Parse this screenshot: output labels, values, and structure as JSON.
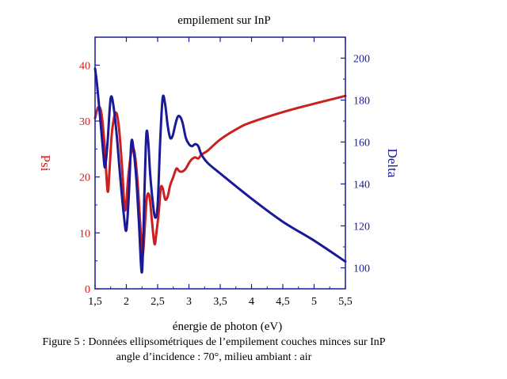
{
  "chart_data": {
    "type": "line",
    "title": "empilement sur InP",
    "xlabel": "énergie de photon (eV)",
    "ylabel_left": "Psi",
    "ylabel_right": "Delta",
    "xlim": [
      1.5,
      5.5
    ],
    "ylim_left": [
      0,
      45
    ],
    "ylim_right": [
      90,
      210
    ],
    "x_ticks": [
      1.5,
      2,
      2.5,
      3,
      3.5,
      4,
      4.5,
      5,
      5.5
    ],
    "x_tick_labels": [
      "1,5",
      "2",
      "2,5",
      "3",
      "3,5",
      "4",
      "4,5",
      "5",
      "5,5"
    ],
    "y_left_ticks": [
      0,
      10,
      20,
      30,
      40
    ],
    "y_left_tick_labels": [
      "0",
      "10",
      "20",
      "30",
      "40"
    ],
    "y_right_ticks": [
      100,
      120,
      140,
      160,
      180,
      200
    ],
    "y_right_tick_labels": [
      "100",
      "120",
      "140",
      "160",
      "180",
      "200"
    ],
    "grid": false,
    "series": [
      {
        "name": "Psi",
        "axis": "left",
        "color": "#cc2020",
        "x": [
          1.5,
          1.55,
          1.6,
          1.65,
          1.7,
          1.73,
          1.77,
          1.83,
          1.88,
          1.93,
          1.98,
          2.03,
          2.08,
          2.13,
          2.18,
          2.22,
          2.26,
          2.3,
          2.33,
          2.37,
          2.41,
          2.45,
          2.48,
          2.52,
          2.55,
          2.58,
          2.62,
          2.66,
          2.7,
          2.75,
          2.8,
          2.85,
          2.9,
          2.95,
          3.0,
          3.05,
          3.1,
          3.15,
          3.2,
          3.3,
          3.5,
          3.8,
          4.0,
          4.5,
          5.0,
          5.5
        ],
        "y": [
          30.5,
          32.5,
          31.5,
          26.0,
          17.5,
          21.0,
          28.0,
          31.5,
          29.0,
          22.0,
          14.0,
          20.0,
          24.5,
          24.5,
          19.0,
          12.0,
          6.0,
          12.0,
          16.5,
          16.5,
          12.0,
          8.0,
          10.0,
          14.0,
          18.0,
          18.0,
          16.0,
          16.5,
          18.5,
          20.0,
          21.5,
          21.0,
          21.0,
          21.5,
          22.5,
          23.2,
          23.5,
          23.3,
          24.0,
          24.7,
          26.7,
          28.8,
          29.8,
          31.6,
          33.1,
          34.5
        ]
      },
      {
        "name": "Delta",
        "axis": "right",
        "color": "#1a1a99",
        "x": [
          1.5,
          1.53,
          1.58,
          1.63,
          1.66,
          1.7,
          1.75,
          1.8,
          1.85,
          1.9,
          1.96,
          2.0,
          2.04,
          2.08,
          2.12,
          2.16,
          2.2,
          2.25,
          2.29,
          2.32,
          2.35,
          2.38,
          2.42,
          2.46,
          2.5,
          2.54,
          2.58,
          2.62,
          2.66,
          2.7,
          2.74,
          2.78,
          2.82,
          2.86,
          2.9,
          2.95,
          3.0,
          3.05,
          3.1,
          3.15,
          3.2,
          3.3,
          3.5,
          4.0,
          4.5,
          5.0,
          5.5
        ],
        "y": [
          195,
          188,
          172,
          155,
          148,
          160,
          181,
          176,
          162,
          144,
          125,
          118,
          135,
          160,
          155,
          142,
          122,
          98,
          137,
          164,
          160,
          145,
          132,
          124,
          130,
          160,
          181,
          178,
          168,
          162,
          163,
          168,
          172,
          172,
          169,
          162,
          159,
          158,
          159,
          158,
          154,
          150,
          145,
          133,
          122,
          113,
          103
        ]
      }
    ]
  },
  "caption": {
    "line1": "Figure 5 : Données ellipsométriques de l’empilement couches minces sur InP",
    "line2": "angle d’incidence : 70°, milieu ambiant : air"
  }
}
